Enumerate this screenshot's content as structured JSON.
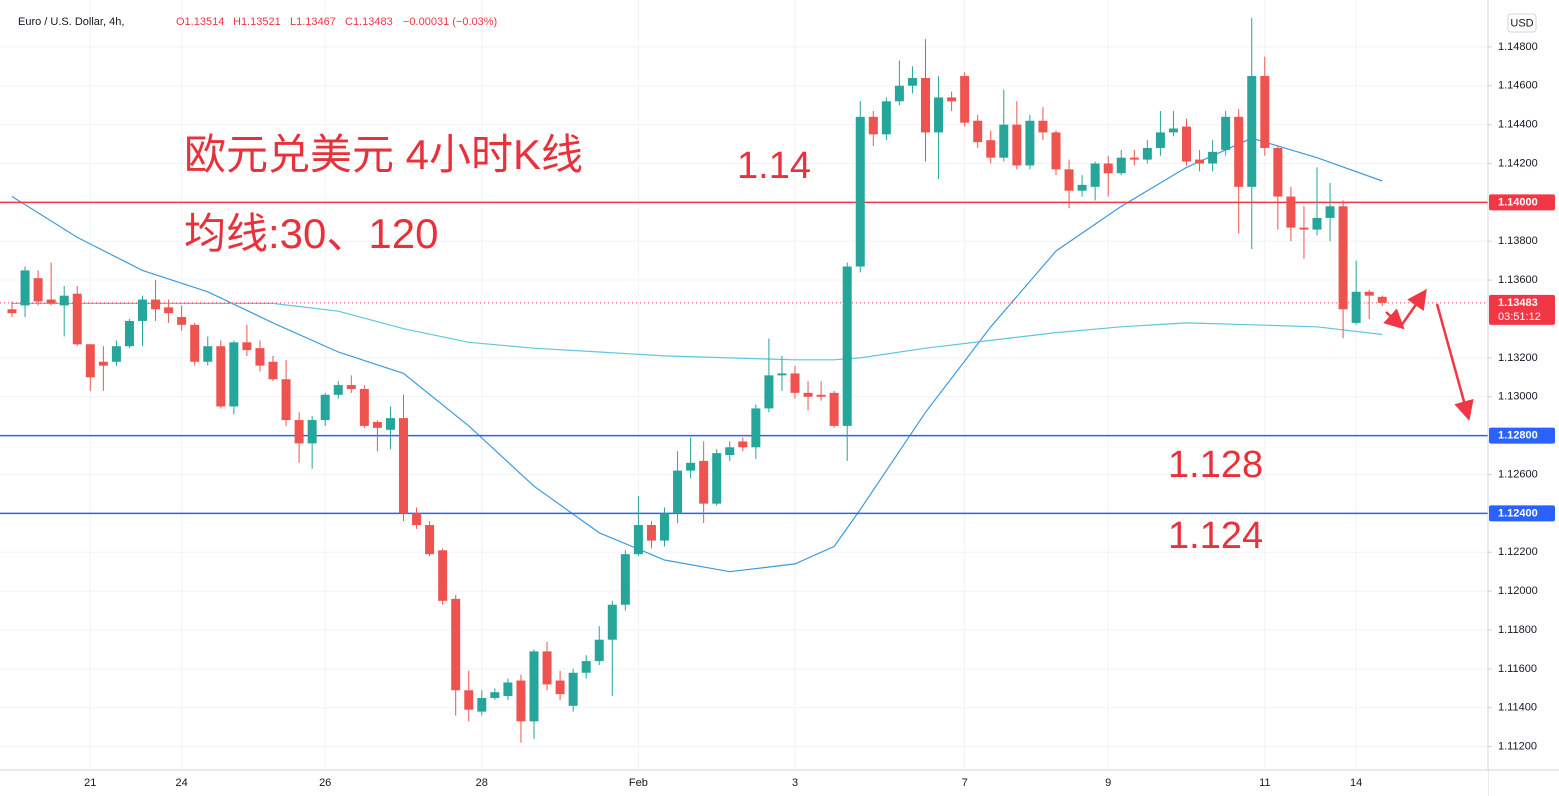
{
  "header": {
    "symbol": "Euro / U.S. Dollar, 4h,",
    "open": "O1.13514",
    "high": "H1.13521",
    "low": "L1.13467",
    "close": "C1.13483",
    "change": "−0.00031 (−0.03%)",
    "currency": "USD"
  },
  "chart_data": {
    "type": "candlestick",
    "categories": [
      null,
      null,
      null,
      null,
      null,
      null,
      "21",
      null,
      null,
      null,
      null,
      null,
      null,
      "24",
      null,
      null,
      null,
      null,
      null,
      null,
      null,
      null,
      null,
      null,
      "26",
      null,
      null,
      null,
      null,
      null,
      null,
      null,
      null,
      null,
      null,
      null,
      "28",
      null,
      null,
      null,
      null,
      null,
      null,
      null,
      null,
      null,
      null,
      null,
      "Feb",
      null,
      null,
      null,
      null,
      null,
      null,
      null,
      null,
      null,
      null,
      null,
      "3",
      null,
      null,
      null,
      null,
      null,
      null,
      null,
      null,
      null,
      null,
      null,
      null,
      "7",
      null,
      null,
      null,
      null,
      null,
      null,
      null,
      null,
      null,
      null,
      "9",
      null,
      null,
      null,
      null,
      null,
      null,
      null,
      null,
      null,
      null,
      null,
      "11",
      null,
      null,
      null,
      null,
      null,
      null,
      "14",
      null,
      null
    ],
    "open": [
      1.1345,
      1.1347,
      1.1361,
      1.135,
      1.1347,
      1.1353,
      1.1327,
      1.1318,
      1.1318,
      1.1326,
      1.1339,
      1.135,
      1.1346,
      1.1341,
      1.1337,
      1.1318,
      1.1326,
      1.1295,
      1.1328,
      1.1325,
      1.1318,
      1.1309,
      1.1288,
      1.1276,
      1.1288,
      1.1301,
      1.1306,
      1.1304,
      1.1287,
      1.1283,
      1.1289,
      1.124,
      1.1234,
      1.1221,
      1.1196,
      1.1149,
      1.1138,
      1.1145,
      1.1146,
      1.1154,
      1.1133,
      1.1169,
      1.1154,
      1.1141,
      1.1158,
      1.1164,
      1.1175,
      1.1193,
      1.1219,
      1.1234,
      1.1226,
      1.124,
      1.1262,
      1.1267,
      1.1245,
      1.127,
      1.1277,
      1.1274,
      1.1294,
      1.1311,
      1.1312,
      1.1302,
      1.1301,
      1.1302,
      1.1285,
      1.1367,
      1.1444,
      1.1435,
      1.1452,
      1.146,
      1.1464,
      1.1436,
      1.1454,
      1.1465,
      1.1442,
      1.1432,
      1.1423,
      1.144,
      1.1419,
      1.1442,
      1.1436,
      1.1417,
      1.1406,
      1.1408,
      1.142,
      1.1415,
      1.1423,
      1.1422,
      1.1428,
      1.1436,
      1.1439,
      1.1422,
      1.142,
      1.1427,
      1.1444,
      1.1408,
      1.1465,
      1.1428,
      1.1403,
      1.1387,
      1.1386,
      1.1392,
      1.1398,
      1.1338,
      1.1354,
      1.13514
    ],
    "high": [
      1.1349,
      1.1367,
      1.1365,
      1.1369,
      1.1357,
      1.1357,
      1.1327,
      1.1326,
      1.1329,
      1.134,
      1.1352,
      1.136,
      1.135,
      1.1347,
      1.1338,
      1.1331,
      1.1329,
      1.1329,
      1.1337,
      1.1329,
      1.1321,
      1.1319,
      1.1292,
      1.129,
      1.1302,
      1.1308,
      1.1311,
      1.1306,
      1.1288,
      1.1295,
      1.1301,
      1.1243,
      1.1236,
      1.1222,
      1.1198,
      1.1159,
      1.1149,
      1.115,
      1.1155,
      1.1157,
      1.117,
      1.1174,
      1.1159,
      1.116,
      1.1167,
      1.1182,
      1.1195,
      1.1221,
      1.1249,
      1.1236,
      1.1243,
      1.1272,
      1.1279,
      1.1277,
      1.1273,
      1.1277,
      1.1279,
      1.1296,
      1.133,
      1.1321,
      1.1316,
      1.1308,
      1.1308,
      1.1303,
      1.1369,
      1.1452,
      1.1447,
      1.1454,
      1.1473,
      1.147,
      1.1484,
      1.1465,
      1.1457,
      1.1467,
      1.1445,
      1.1437,
      1.1458,
      1.1452,
      1.1445,
      1.1449,
      1.1437,
      1.1422,
      1.1414,
      1.1421,
      1.1424,
      1.1427,
      1.1427,
      1.1432,
      1.1447,
      1.1447,
      1.1443,
      1.1427,
      1.1432,
      1.1447,
      1.1448,
      1.1495,
      1.1475,
      1.1429,
      1.1408,
      1.1398,
      1.1418,
      1.141,
      1.1401,
      1.137,
      1.1355,
      1.13521
    ],
    "low": [
      1.1341,
      1.1341,
      1.1347,
      1.1347,
      1.1331,
      1.1326,
      1.1303,
      1.1303,
      1.1316,
      1.1325,
      1.1326,
      1.1339,
      1.1338,
      1.1334,
      1.1316,
      1.1316,
      1.1294,
      1.1291,
      1.1321,
      1.1313,
      1.1308,
      1.1285,
      1.1266,
      1.1263,
      1.1285,
      1.1299,
      1.1302,
      1.1284,
      1.1272,
      1.1273,
      1.1236,
      1.1232,
      1.1218,
      1.1193,
      1.1136,
      1.1133,
      1.1136,
      1.1144,
      1.1144,
      1.1122,
      1.1124,
      1.1149,
      1.1144,
      1.1138,
      1.1155,
      1.1162,
      1.1146,
      1.119,
      1.1218,
      1.1222,
      1.1223,
      1.1235,
      1.1258,
      1.1235,
      1.1244,
      1.1267,
      1.1272,
      1.1268,
      1.1292,
      1.1303,
      1.1299,
      1.1293,
      1.1298,
      1.1284,
      1.1267,
      1.1364,
      1.1429,
      1.1432,
      1.145,
      1.1456,
      1.1421,
      1.1412,
      1.1447,
      1.1439,
      1.1428,
      1.142,
      1.1421,
      1.1417,
      1.1417,
      1.1432,
      1.1414,
      1.1397,
      1.1403,
      1.1401,
      1.1403,
      1.1414,
      1.1419,
      1.142,
      1.1424,
      1.1434,
      1.1419,
      1.1416,
      1.1416,
      1.1424,
      1.1384,
      1.1376,
      1.1424,
      1.1386,
      1.138,
      1.1371,
      1.1383,
      1.138,
      1.133,
      1.1337,
      1.134,
      1.13467
    ],
    "close": [
      1.1343,
      1.1365,
      1.1349,
      1.1348,
      1.1352,
      1.1327,
      1.131,
      1.1316,
      1.1326,
      1.1339,
      1.135,
      1.1345,
      1.1343,
      1.1337,
      1.1318,
      1.1326,
      1.1295,
      1.1328,
      1.1324,
      1.1316,
      1.1309,
      1.1288,
      1.1276,
      1.1288,
      1.1301,
      1.1306,
      1.1304,
      1.1285,
      1.1284,
      1.1289,
      1.124,
      1.1234,
      1.1219,
      1.1195,
      1.1149,
      1.1139,
      1.1145,
      1.1148,
      1.1153,
      1.1133,
      1.1169,
      1.1152,
      1.1147,
      1.1158,
      1.1164,
      1.1175,
      1.1193,
      1.1219,
      1.1234,
      1.1226,
      1.124,
      1.1262,
      1.1266,
      1.1245,
      1.1271,
      1.1274,
      1.1274,
      1.1294,
      1.1311,
      1.1312,
      1.1302,
      1.13,
      1.13,
      1.1285,
      1.1367,
      1.1444,
      1.1435,
      1.1452,
      1.146,
      1.1464,
      1.1436,
      1.1454,
      1.1452,
      1.1441,
      1.1431,
      1.1423,
      1.144,
      1.1419,
      1.1442,
      1.1436,
      1.1417,
      1.1406,
      1.1409,
      1.142,
      1.1415,
      1.1423,
      1.1422,
      1.1428,
      1.1436,
      1.1438,
      1.1421,
      1.142,
      1.1426,
      1.1444,
      1.1408,
      1.1465,
      1.1428,
      1.1403,
      1.1387,
      1.1386,
      1.1392,
      1.1398,
      1.1345,
      1.1354,
      1.1352,
      1.13483
    ],
    "up_color": "#26a69a",
    "down_color": "#ef5350",
    "moving_averages": [
      {
        "color": "#3d9be0",
        "x": [
          0,
          5,
          10,
          15,
          20,
          25,
          30,
          35,
          40,
          45,
          50,
          55,
          60,
          63,
          65,
          70,
          75,
          80,
          85,
          90,
          95,
          100,
          105
        ],
        "values": [
          1.1403,
          1.1382,
          1.1365,
          1.1354,
          1.1338,
          1.1323,
          1.1312,
          1.1285,
          1.1254,
          1.123,
          1.1216,
          1.121,
          1.1214,
          1.1223,
          1.1242,
          1.1292,
          1.1336,
          1.1375,
          1.1398,
          1.1418,
          1.1433,
          1.1423,
          1.1411
        ]
      },
      {
        "color": "#5ec8dc",
        "x": [
          0,
          10,
          20,
          25,
          30,
          35,
          40,
          45,
          50,
          55,
          60,
          63,
          65,
          70,
          75,
          80,
          85,
          90,
          95,
          100,
          105
        ],
        "values": [
          1.1348,
          1.1348,
          1.1348,
          1.1344,
          1.1335,
          1.1328,
          1.1325,
          1.1323,
          1.1321,
          1.132,
          1.1319,
          1.1319,
          1.132,
          1.1325,
          1.1329,
          1.1333,
          1.1336,
          1.1338,
          1.1337,
          1.1336,
          1.1332
        ]
      }
    ],
    "hlines": [
      {
        "value": 1.14,
        "label": "1.14000",
        "color": "#f23645"
      },
      {
        "value": 1.128,
        "label": "1.12800",
        "color": "#2962ff"
      },
      {
        "value": 1.124,
        "label": "1.12400",
        "color": "#2962ff"
      }
    ],
    "last_price": {
      "value": 1.13483,
      "label": "1.13483",
      "countdown": "03:51:12",
      "color": "#f23645"
    },
    "annotations": [
      {
        "text": "欧元兑美元 4小时K线",
        "color": "#e8313a"
      },
      {
        "text": "均线:30、120",
        "color": "#e8313a"
      },
      {
        "text": "1.14",
        "color": "#e8313a"
      },
      {
        "text": "1.128",
        "color": "#e8313a"
      },
      {
        "text": "1.124",
        "color": "#e8313a"
      }
    ],
    "ylim": [
      1.1109,
      1.15
    ],
    "yticks": [
      {
        "value": 1.148,
        "label": "1.14800"
      },
      {
        "value": 1.146,
        "label": "1.14600"
      },
      {
        "value": 1.144,
        "label": "1.14400"
      },
      {
        "value": 1.142,
        "label": "1.14200"
      },
      {
        "value": 1.138,
        "label": "1.13800"
      },
      {
        "value": 1.136,
        "label": "1.13600"
      },
      {
        "value": 1.132,
        "label": "1.13200"
      },
      {
        "value": 1.13,
        "label": "1.13000"
      },
      {
        "value": 1.126,
        "label": "1.12600"
      },
      {
        "value": 1.122,
        "label": "1.12200"
      },
      {
        "value": 1.12,
        "label": "1.12000"
      },
      {
        "value": 1.118,
        "label": "1.11800"
      },
      {
        "value": 1.116,
        "label": "1.11600"
      },
      {
        "value": 1.114,
        "label": "1.11400"
      },
      {
        "value": 1.112,
        "label": "1.11200"
      }
    ],
    "grid": true
  }
}
